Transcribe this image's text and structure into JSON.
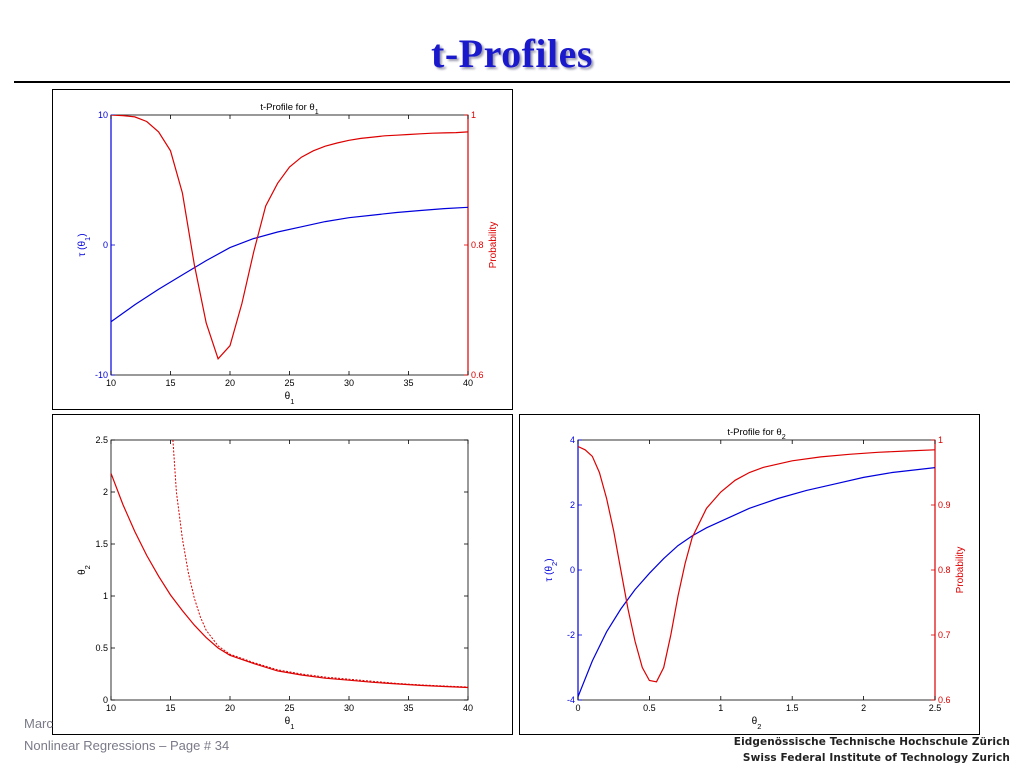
{
  "slide": {
    "title": "t-Profiles",
    "footer_author": "Marc",
    "footer_course": "Nonlinear Regressions – Page #  34",
    "institution_line1": "Eidgenössische Technische Hochschule Zürich",
    "institution_line2": "Swiss Federal Institute of Technology Zurich"
  },
  "colors": {
    "title": "#1a1acc",
    "tau": "#0000dd",
    "probability": "#dd0000"
  },
  "chart_data": [
    {
      "type": "line",
      "title": "t-Profile for θ1",
      "xlabel": "θ1",
      "ylabel_left": "τ (θ1)",
      "ylabel_right": "Probability",
      "xlim": [
        10,
        40
      ],
      "ylim_left": [
        -10,
        10
      ],
      "ylim_right": [
        0.6,
        1.0
      ],
      "x_ticks": [
        "10",
        "15",
        "20",
        "25",
        "30",
        "35",
        "40"
      ],
      "y_ticks_left": [
        "-10",
        "0",
        "10"
      ],
      "y_ticks_right": [
        "0.6",
        "0.8",
        "1"
      ],
      "series": [
        {
          "axis": "left",
          "color": "#0000dd",
          "x": [
            10,
            12,
            14,
            16,
            18,
            20,
            22,
            24,
            26,
            28,
            30,
            32,
            34,
            36,
            38,
            40
          ],
          "y": [
            -5.9,
            -4.6,
            -3.4,
            -2.3,
            -1.2,
            -0.2,
            0.5,
            1.0,
            1.4,
            1.8,
            2.1,
            2.3,
            2.5,
            2.65,
            2.8,
            2.9
          ]
        },
        {
          "axis": "right",
          "color": "#dd0000",
          "x": [
            10,
            11,
            12,
            13,
            14,
            15,
            16,
            17,
            18,
            19,
            20,
            21,
            22,
            23,
            24,
            25,
            26,
            27,
            28,
            29,
            30,
            31,
            32,
            33,
            34,
            35,
            36,
            37,
            38,
            39,
            40
          ],
          "y": [
            1.0,
            0.999,
            0.997,
            0.99,
            0.974,
            0.945,
            0.88,
            0.77,
            0.68,
            0.625,
            0.645,
            0.71,
            0.79,
            0.86,
            0.895,
            0.92,
            0.935,
            0.945,
            0.952,
            0.957,
            0.961,
            0.964,
            0.966,
            0.968,
            0.969,
            0.97,
            0.971,
            0.972,
            0.9725,
            0.973,
            0.974
          ]
        }
      ]
    },
    {
      "type": "line",
      "title": "",
      "xlabel": "θ1",
      "ylabel": "θ2",
      "xlim": [
        10,
        40
      ],
      "ylim": [
        0,
        2.5
      ],
      "x_ticks": [
        "10",
        "15",
        "20",
        "25",
        "30",
        "35",
        "40"
      ],
      "y_ticks": [
        "0",
        "0.5",
        "1",
        "1.5",
        "2",
        "2.5"
      ],
      "series": [
        {
          "style": "solid",
          "color": "#dd0000",
          "x": [
            10,
            11,
            12,
            13,
            14,
            15,
            16,
            17,
            18,
            19,
            20,
            22,
            24,
            26,
            28,
            30,
            32,
            34,
            36,
            38,
            40
          ],
          "y": [
            2.18,
            1.88,
            1.62,
            1.39,
            1.19,
            1.01,
            0.86,
            0.72,
            0.6,
            0.5,
            0.43,
            0.35,
            0.28,
            0.24,
            0.21,
            0.19,
            0.17,
            0.155,
            0.14,
            0.13,
            0.12
          ]
        },
        {
          "style": "dashed",
          "color": "#dd0000",
          "x": [
            15.2,
            15.5,
            16,
            16.5,
            17,
            17.5,
            18,
            19,
            20,
            22,
            24,
            26,
            28,
            30,
            32,
            34,
            36,
            38,
            40
          ],
          "y": [
            2.5,
            2.0,
            1.55,
            1.22,
            0.98,
            0.8,
            0.67,
            0.52,
            0.44,
            0.36,
            0.29,
            0.25,
            0.22,
            0.2,
            0.18,
            0.16,
            0.145,
            0.135,
            0.125
          ]
        }
      ]
    },
    {
      "type": "line",
      "title": "t-Profile for θ2",
      "xlabel": "θ2",
      "ylabel_left": "τ (θ2)",
      "ylabel_right": "Probability",
      "xlim": [
        0,
        2.5
      ],
      "ylim_left": [
        -4,
        4
      ],
      "ylim_right": [
        0.6,
        1.0
      ],
      "x_ticks": [
        "0",
        "0.5",
        "1",
        "1.5",
        "2",
        "2.5"
      ],
      "y_ticks_left": [
        "-4",
        "-2",
        "0",
        "2",
        "4"
      ],
      "y_ticks_right": [
        "0.6",
        "0.7",
        "0.8",
        "0.9",
        "1"
      ],
      "series": [
        {
          "axis": "left",
          "color": "#0000dd",
          "x": [
            0,
            0.1,
            0.2,
            0.3,
            0.4,
            0.5,
            0.6,
            0.7,
            0.8,
            0.9,
            1.0,
            1.2,
            1.4,
            1.6,
            1.8,
            2.0,
            2.2,
            2.5
          ],
          "y": [
            -3.9,
            -2.8,
            -1.9,
            -1.2,
            -0.6,
            -0.1,
            0.35,
            0.75,
            1.05,
            1.3,
            1.5,
            1.9,
            2.2,
            2.45,
            2.65,
            2.85,
            3.0,
            3.15
          ]
        },
        {
          "axis": "right",
          "color": "#dd0000",
          "x": [
            0,
            0.05,
            0.1,
            0.15,
            0.2,
            0.25,
            0.3,
            0.35,
            0.4,
            0.45,
            0.5,
            0.55,
            0.6,
            0.65,
            0.7,
            0.75,
            0.8,
            0.9,
            1.0,
            1.1,
            1.2,
            1.3,
            1.5,
            1.7,
            1.9,
            2.1,
            2.3,
            2.5
          ],
          "y": [
            0.99,
            0.985,
            0.975,
            0.95,
            0.91,
            0.86,
            0.8,
            0.74,
            0.69,
            0.65,
            0.63,
            0.628,
            0.65,
            0.7,
            0.76,
            0.81,
            0.85,
            0.895,
            0.92,
            0.938,
            0.95,
            0.958,
            0.968,
            0.974,
            0.978,
            0.981,
            0.983,
            0.985
          ]
        }
      ]
    }
  ]
}
